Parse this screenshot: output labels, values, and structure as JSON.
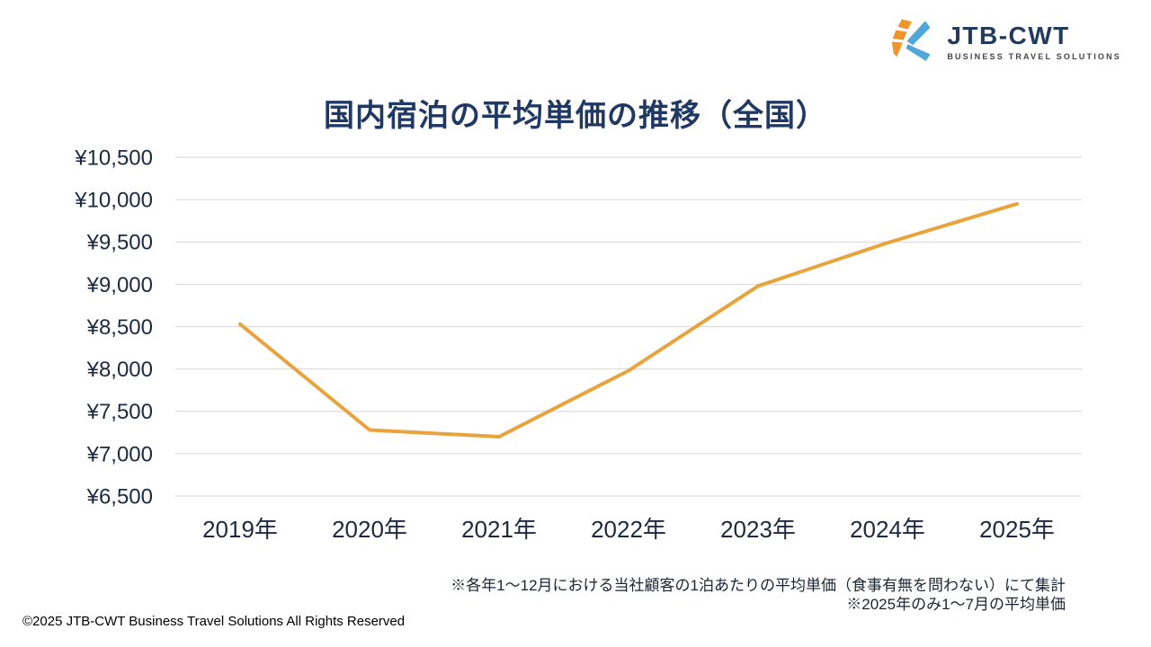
{
  "logo": {
    "wordmark": "JTB-CWT",
    "tagline": "BUSINESS TRAVEL SOLUTIONS",
    "mark_orange": "#F0942C",
    "mark_blue": "#4FA6D8"
  },
  "title": "国内宿泊の平均単価の推移（全国）",
  "chart_data": {
    "type": "line",
    "title": "国内宿泊の平均単価の推移（全国）",
    "categories": [
      "2019年",
      "2020年",
      "2021年",
      "2022年",
      "2023年",
      "2024年",
      "2025年"
    ],
    "series": [
      {
        "values": [
          8530,
          7280,
          7200,
          7980,
          8980,
          9490,
          9950
        ]
      }
    ],
    "ylim": [
      6500,
      10500
    ],
    "ytick_step": 500,
    "ytick_values": [
      10500,
      10000,
      9500,
      9000,
      8500,
      8000,
      7500,
      7000,
      6500
    ],
    "ytick_labels": [
      "¥10,500",
      "¥10,000",
      "¥9,500",
      "¥9,000",
      "¥8,500",
      "¥8,000",
      "¥7,500",
      "¥7,000",
      "¥6,500"
    ],
    "grid": true,
    "legend": "none",
    "markers": false,
    "line_color": "#E8A33D",
    "gridline_color": "#D6D6D6",
    "axis_label_color": "#1B2A40"
  },
  "footnotes": [
    "※各年1～12月における当社顧客の1泊あたりの平均単価（食事有無を問わない）にて集計",
    "※2025年のみ1～7月の平均単価"
  ],
  "copyright": "©2025 JTB-CWT  Business Travel  Solutions All Rights Reserved"
}
